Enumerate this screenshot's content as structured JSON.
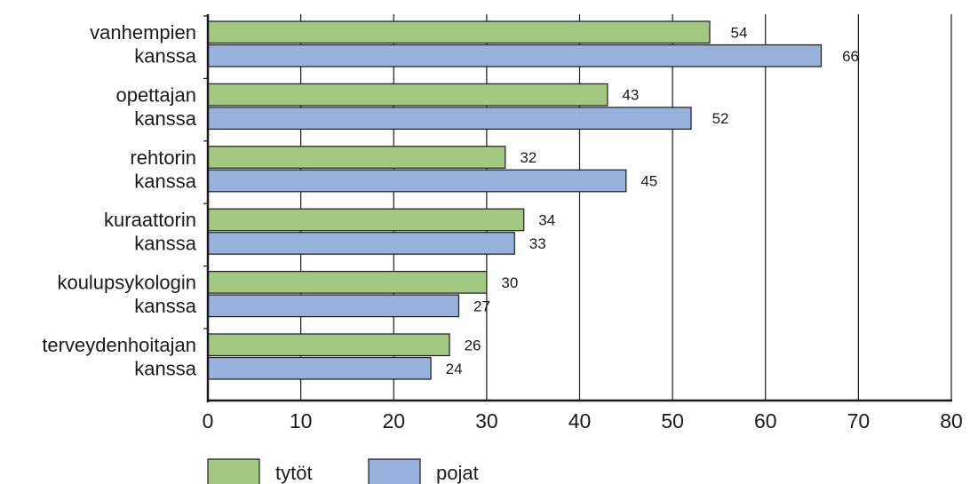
{
  "chart_data": {
    "type": "bar",
    "orientation": "horizontal",
    "categories": [
      [
        "vanhempien",
        "kanssa"
      ],
      [
        "opettajan",
        "kanssa"
      ],
      [
        "rehtorin",
        "kanssa"
      ],
      [
        "kuraattorin",
        "kanssa"
      ],
      [
        "koulupsykologin",
        "kanssa"
      ],
      [
        "terveydenhoitajan",
        "kanssa"
      ]
    ],
    "series": [
      {
        "name": "tytöt",
        "color": "#a3c882",
        "values": [
          54,
          43,
          32,
          34,
          30,
          26
        ]
      },
      {
        "name": "pojat",
        "color": "#98b0dc",
        "values": [
          66,
          52,
          45,
          33,
          27,
          24
        ]
      }
    ],
    "xlim": [
      0,
      80
    ],
    "xticks": [
      "0",
      "10",
      "20",
      "30",
      "40",
      "50",
      "60",
      "70",
      "80"
    ],
    "grid": true,
    "legend_position": "bottom-left",
    "title": "",
    "xlabel": "",
    "ylabel": ""
  }
}
